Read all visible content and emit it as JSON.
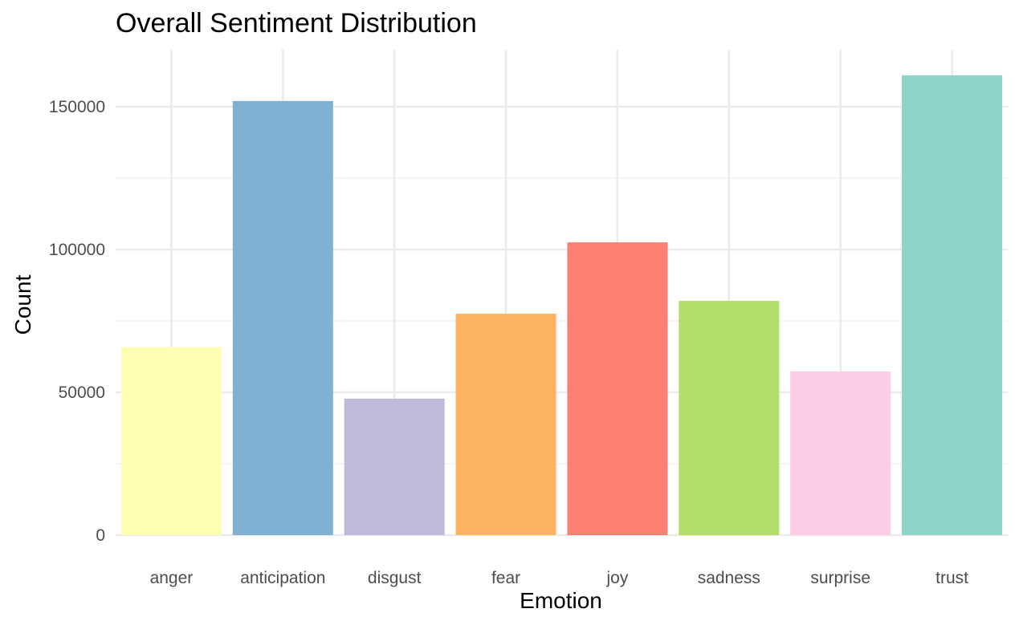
{
  "chart_data": {
    "type": "bar",
    "title": "Overall Sentiment Distribution",
    "xlabel": "Emotion",
    "ylabel": "Count",
    "categories": [
      "anger",
      "anticipation",
      "disgust",
      "fear",
      "joy",
      "sadness",
      "surprise",
      "trust"
    ],
    "values": [
      65800,
      152000,
      47800,
      77500,
      102500,
      82000,
      57300,
      161000
    ],
    "colors": [
      "#FFFFB3",
      "#80B1D3",
      "#BEBADA",
      "#FDB462",
      "#FB8072",
      "#B3DE69",
      "#FCCDE5",
      "#8DD3C7"
    ],
    "yticks": [
      0,
      50000,
      100000,
      150000
    ],
    "ytick_labels": [
      "0",
      "50000",
      "100000",
      "150000"
    ],
    "ylim": [
      0,
      168000
    ],
    "grid": true,
    "legend": "none"
  }
}
